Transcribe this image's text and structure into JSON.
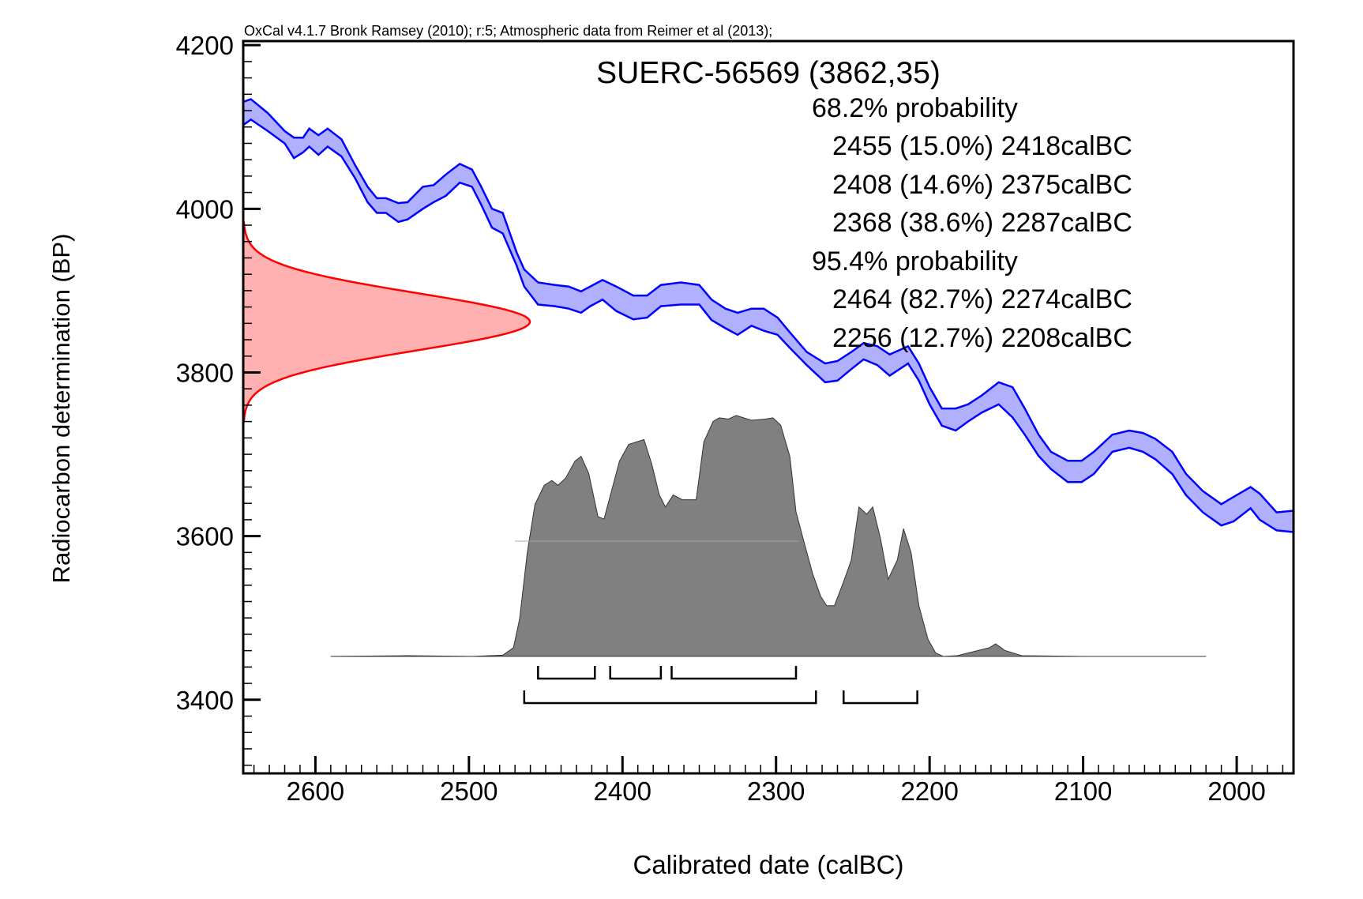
{
  "chart_data": {
    "type": "area",
    "header": "OxCal v4.1.7 Bronk Ramsey (2010); r:5; Atmospheric data from Reimer et al (2013);",
    "title": "SUERC-56569 (3862,35)",
    "xlabel": "Calibrated date (calBC)",
    "ylabel": "Radiocarbon determination (BP)",
    "xlim": [
      2647,
      1963
    ],
    "ylim": [
      3310,
      4205
    ],
    "x_ticks": [
      "2600",
      "2500",
      "2400",
      "2300",
      "2200",
      "2100",
      "2000"
    ],
    "y_ticks": [
      "3400",
      "3600",
      "3800",
      "4000",
      "4200"
    ],
    "measurement": {
      "mean": 3862,
      "sigma": 35
    },
    "ranges_68": {
      "label": "68.2% probability",
      "items": [
        {
          "from": 2455,
          "to": 2418,
          "text": "2455 (15.0%) 2418calBC"
        },
        {
          "from": 2408,
          "to": 2375,
          "text": "2408 (14.6%) 2375calBC"
        },
        {
          "from": 2368,
          "to": 2287,
          "text": "2368 (38.6%) 2287calBC"
        }
      ]
    },
    "ranges_95": {
      "label": "95.4% probability",
      "items": [
        {
          "from": 2464,
          "to": 2274,
          "text": "2464 (82.7%) 2274calBC"
        },
        {
          "from": 2256,
          "to": 2208,
          "text": "2256 (12.7%) 2208calBC"
        }
      ]
    },
    "calibration_curve": {
      "date": [
        2648,
        2642,
        2631,
        2620,
        2614,
        2608,
        2604,
        2598,
        2592,
        2583,
        2574,
        2566,
        2560,
        2554,
        2546,
        2540,
        2530,
        2523,
        2515,
        2506,
        2498,
        2492,
        2485,
        2478,
        2469,
        2464,
        2455,
        2444,
        2435,
        2427,
        2421,
        2413,
        2404,
        2393,
        2384,
        2375,
        2362,
        2350,
        2342,
        2333,
        2325,
        2316,
        2308,
        2299,
        2291,
        2280,
        2268,
        2260,
        2251,
        2243,
        2234,
        2226,
        2214,
        2207,
        2200,
        2192,
        2183,
        2175,
        2166,
        2155,
        2146,
        2138,
        2129,
        2121,
        2110,
        2101,
        2093,
        2081,
        2070,
        2061,
        2053,
        2042,
        2033,
        2022,
        2010,
        2002,
        1991,
        1985,
        1974,
        1963
      ],
      "upper": [
        4130,
        4134,
        4117,
        4095,
        4087,
        4087,
        4098,
        4090,
        4098,
        4085,
        4053,
        4027,
        4013,
        4013,
        4007,
        4008,
        4027,
        4029,
        4042,
        4055,
        4048,
        4027,
        4000,
        3995,
        3947,
        3926,
        3910,
        3907,
        3905,
        3899,
        3905,
        3913,
        3905,
        3894,
        3894,
        3907,
        3910,
        3907,
        3889,
        3878,
        3873,
        3878,
        3878,
        3867,
        3849,
        3825,
        3811,
        3814,
        3825,
        3836,
        3832,
        3822,
        3832,
        3811,
        3782,
        3756,
        3756,
        3761,
        3772,
        3788,
        3782,
        3756,
        3724,
        3703,
        3692,
        3692,
        3703,
        3724,
        3729,
        3726,
        3719,
        3703,
        3676,
        3655,
        3639,
        3648,
        3660,
        3652,
        3629,
        3631
      ],
      "lower": [
        4101,
        4109,
        4095,
        4080,
        4062,
        4069,
        4076,
        4066,
        4076,
        4064,
        4037,
        4008,
        3995,
        3995,
        3984,
        3987,
        4000,
        4008,
        4016,
        4032,
        4027,
        4005,
        3977,
        3970,
        3931,
        3905,
        3883,
        3881,
        3878,
        3873,
        3881,
        3889,
        3875,
        3865,
        3867,
        3881,
        3883,
        3883,
        3864,
        3854,
        3846,
        3857,
        3851,
        3846,
        3830,
        3809,
        3788,
        3790,
        3804,
        3816,
        3809,
        3796,
        3811,
        3790,
        3761,
        3735,
        3729,
        3740,
        3751,
        3761,
        3745,
        3724,
        3698,
        3682,
        3666,
        3666,
        3676,
        3703,
        3708,
        3703,
        3694,
        3676,
        3650,
        3629,
        3613,
        3618,
        3634,
        3620,
        3607,
        3605
      ]
    },
    "posterior": {
      "baseline_bp": 3453,
      "date": [
        2590,
        2540,
        2498,
        2478,
        2471,
        2467,
        2462,
        2457,
        2451,
        2446,
        2442,
        2437,
        2431,
        2427,
        2422,
        2416,
        2412,
        2407,
        2402,
        2396,
        2386,
        2381,
        2376,
        2372,
        2367,
        2361,
        2352,
        2347,
        2341,
        2337,
        2331,
        2326,
        2316,
        2307,
        2302,
        2297,
        2291,
        2287,
        2282,
        2276,
        2271,
        2267,
        2262,
        2256,
        2251,
        2246,
        2241,
        2237,
        2232,
        2227,
        2221,
        2217,
        2212,
        2207,
        2201,
        2196,
        2191,
        2182,
        2161,
        2157,
        2151,
        2140,
        2100,
        2020
      ],
      "prob": [
        0,
        0.003,
        0,
        0.005,
        0.036,
        0.155,
        0.43,
        0.63,
        0.71,
        0.73,
        0.71,
        0.74,
        0.81,
        0.83,
        0.76,
        0.58,
        0.57,
        0.69,
        0.81,
        0.88,
        0.9,
        0.8,
        0.67,
        0.62,
        0.67,
        0.65,
        0.65,
        0.89,
        0.975,
        0.99,
        0.985,
        1.0,
        0.98,
        0.985,
        0.99,
        0.96,
        0.83,
        0.6,
        0.48,
        0.34,
        0.25,
        0.21,
        0.21,
        0.31,
        0.4,
        0.62,
        0.59,
        0.62,
        0.49,
        0.32,
        0.4,
        0.53,
        0.43,
        0.21,
        0.07,
        0.014,
        0,
        0.003,
        0.036,
        0.052,
        0.025,
        0.003,
        0,
        0
      ]
    },
    "colors": {
      "curve_stroke": "#0000ff",
      "curve_fill": "#b0b0ff",
      "measurement_stroke": "#ff0000",
      "measurement_fill": "#ffb0b0",
      "posterior_fill": "#808080"
    }
  }
}
